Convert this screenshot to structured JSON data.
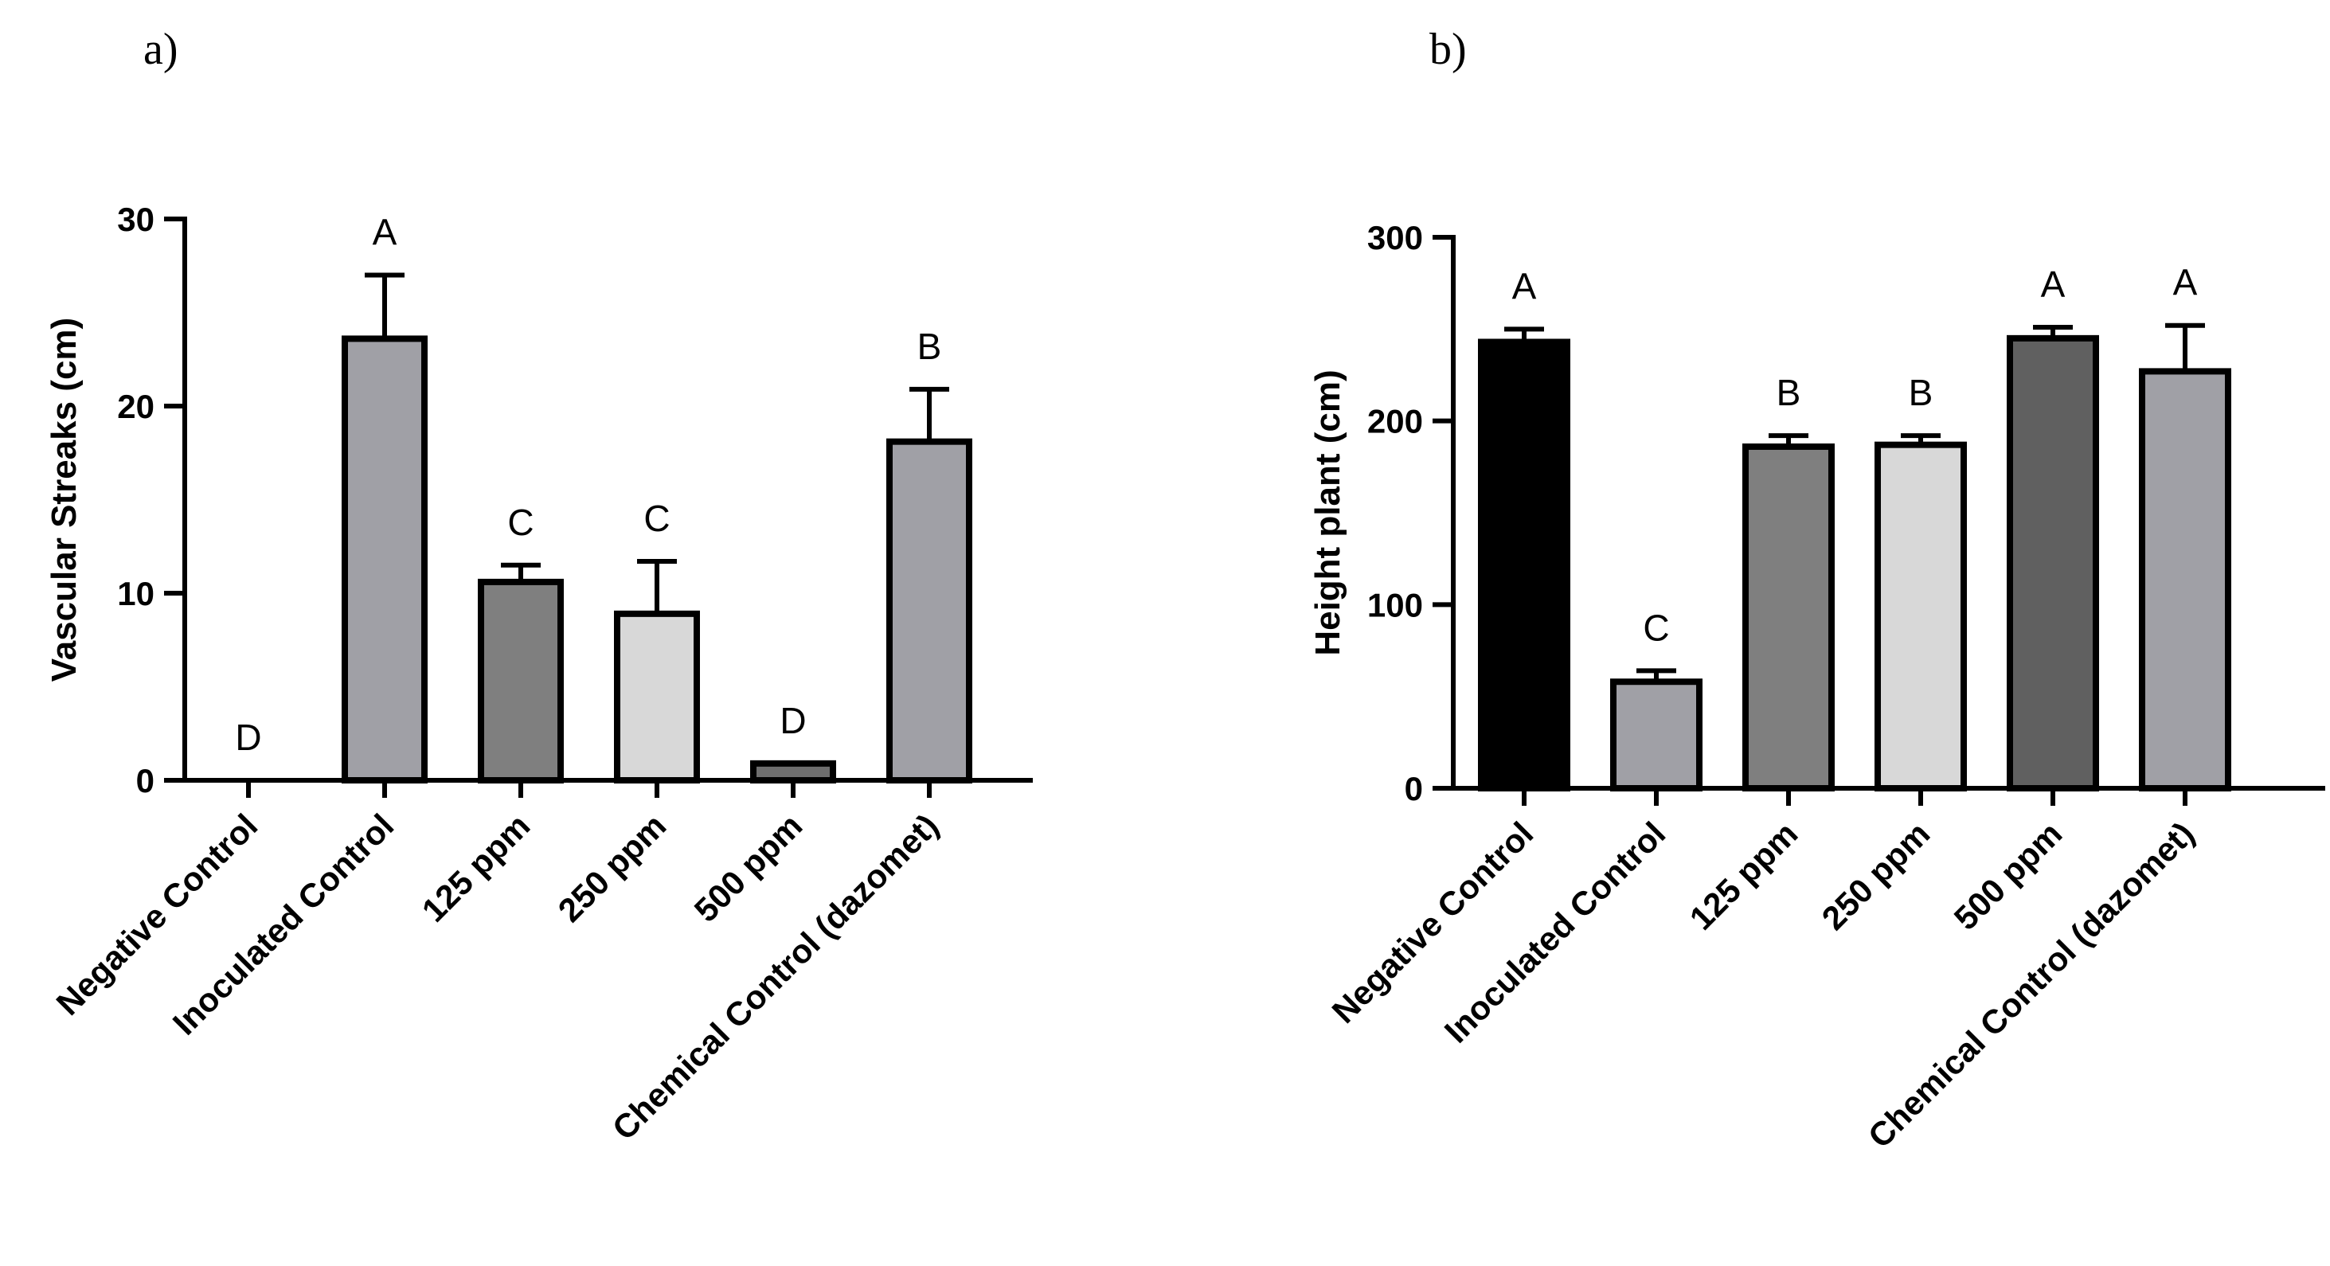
{
  "chart_data": [
    {
      "id": "a",
      "panel_label": "a)",
      "type": "bar",
      "ylabel": "Vascular Streaks (cm)",
      "xlabel": "",
      "ylim": [
        0,
        30
      ],
      "yticks": [
        0,
        10,
        20,
        30
      ],
      "categories": [
        "Negative Control",
        "Inoculated Control",
        "125 ppm",
        "250 ppm",
        "500 ppm",
        "Chemical Control (dazomet)"
      ],
      "values": [
        0,
        23.6,
        10.6,
        8.9,
        0.9,
        18.1
      ],
      "errors": [
        0,
        3.4,
        0.9,
        2.8,
        0,
        2.8
      ],
      "letters": [
        "D",
        "A",
        "C",
        "C",
        "D",
        "B"
      ],
      "colors": [
        "#000000",
        "#a0a0a6",
        "#7f7f7f",
        "#d8d8d8",
        "#6e6e6e",
        "#a0a0a6"
      ]
    },
    {
      "id": "b",
      "panel_label": "b)",
      "type": "bar",
      "ylabel": "Height plant (cm)",
      "xlabel": "",
      "ylim": [
        0,
        300
      ],
      "yticks": [
        0,
        100,
        200,
        300
      ],
      "categories": [
        "Negative Control",
        "Inoculated Control",
        "125 ppm",
        "250 ppm",
        "500 ppm",
        "Chemical Control (dazomet)"
      ],
      "values": [
        243,
        58,
        186,
        187,
        245,
        227
      ],
      "errors": [
        7,
        6,
        6,
        5,
        6,
        25
      ],
      "letters": [
        "A",
        "C",
        "B",
        "B",
        "A",
        "A"
      ],
      "colors": [
        "#000000",
        "#a0a0a6",
        "#7f7f7f",
        "#d8d8d8",
        "#606060",
        "#a0a0a6"
      ]
    }
  ]
}
